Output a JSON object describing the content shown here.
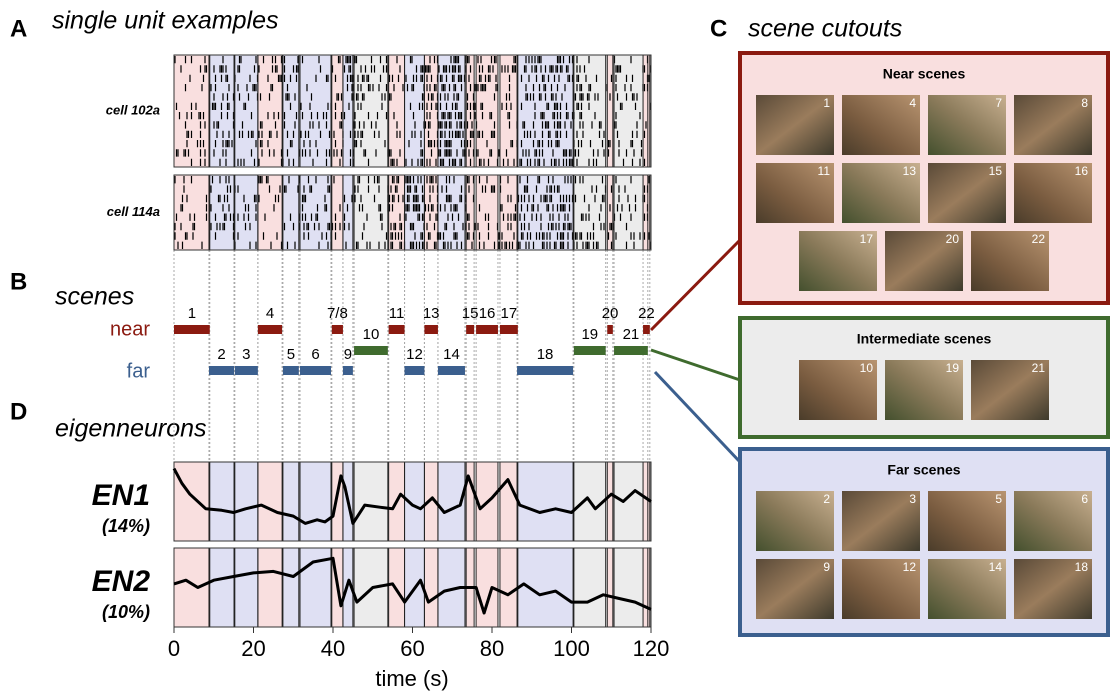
{
  "panel_a": {
    "letter": "A",
    "title": "single unit examples",
    "cells": [
      "cell 102a",
      "cell 114a"
    ]
  },
  "panel_b": {
    "letter": "B",
    "title": "scenes",
    "near_label": "near",
    "far_label": "far",
    "scenes": [
      {
        "label": "1",
        "kind": "near",
        "start": 0,
        "end": 9
      },
      {
        "label": "2",
        "kind": "far",
        "start": 8.8,
        "end": 15.1
      },
      {
        "label": "3",
        "kind": "far",
        "start": 15.3,
        "end": 21.1
      },
      {
        "label": "4",
        "kind": "near",
        "start": 21.1,
        "end": 27.2
      },
      {
        "label": "5",
        "kind": "far",
        "start": 27.4,
        "end": 31.4
      },
      {
        "label": "6",
        "kind": "far",
        "start": 31.7,
        "end": 39.5
      },
      {
        "label": "7/8",
        "kind": "near",
        "start": 39.7,
        "end": 42.5
      },
      {
        "label": "9",
        "kind": "far",
        "start": 42.5,
        "end": 45
      },
      {
        "label": "10",
        "kind": "intermediate",
        "start": 45.3,
        "end": 53.8
      },
      {
        "label": "11",
        "kind": "near",
        "start": 54,
        "end": 58
      },
      {
        "label": "12",
        "kind": "far",
        "start": 58,
        "end": 63
      },
      {
        "label": "13",
        "kind": "near",
        "start": 63,
        "end": 66.4
      },
      {
        "label": "14",
        "kind": "far",
        "start": 66.4,
        "end": 73.2
      },
      {
        "label": "15",
        "kind": "near",
        "start": 73.5,
        "end": 75.5
      },
      {
        "label": "16",
        "kind": "near",
        "start": 76,
        "end": 81.5
      },
      {
        "label": "17",
        "kind": "near",
        "start": 82,
        "end": 86.5
      },
      {
        "label": "18",
        "kind": "far",
        "start": 86.3,
        "end": 100.4
      },
      {
        "label": "19",
        "kind": "intermediate",
        "start": 100.6,
        "end": 108.6
      },
      {
        "label": "20",
        "kind": "near",
        "start": 109,
        "end": 110.4
      },
      {
        "label": "21",
        "kind": "intermediate",
        "start": 110.7,
        "end": 119.2
      },
      {
        "label": "22",
        "kind": "near",
        "start": 118,
        "end": 119.7
      }
    ],
    "colors": {
      "near": {
        "bar": "#8b1a10",
        "shade": "#f9dfdf"
      },
      "far": {
        "bar": "#3b5f8e",
        "shade": "#dfe0f3"
      },
      "intermediate": {
        "bar": "#3f6b2e",
        "shade": "#ececec"
      }
    }
  },
  "panel_c": {
    "letter": "C",
    "title": "scene cutouts",
    "groups": [
      {
        "title": "Near scenes",
        "kind": "near",
        "items": [
          "1",
          "4",
          "7",
          "8",
          "11",
          "13",
          "15",
          "16",
          "17",
          "20",
          "22"
        ]
      },
      {
        "title": "Intermediate scenes",
        "kind": "intermediate",
        "items": [
          "10",
          "19",
          "21"
        ]
      },
      {
        "title": "Far scenes",
        "kind": "far",
        "items": [
          "2",
          "3",
          "5",
          "6",
          "9",
          "12",
          "14",
          "18"
        ]
      }
    ]
  },
  "panel_d": {
    "letter": "D",
    "title": "eigenneurons",
    "xlabel": "time (s)",
    "xlim": [
      0,
      120
    ],
    "xticks": [
      0,
      20,
      40,
      60,
      80,
      100,
      120
    ],
    "ylim": [
      0,
      1
    ],
    "traces": [
      {
        "name": "EN1",
        "variance": "(14%)",
        "x": [
          0,
          2,
          4,
          8,
          12,
          15,
          18,
          22,
          26,
          30,
          33,
          36,
          38,
          40,
          42,
          43,
          45,
          48,
          52,
          55,
          57,
          60,
          62,
          65,
          68,
          72,
          74,
          77,
          80,
          84,
          87,
          92,
          96,
          100,
          104,
          106,
          110,
          113,
          116,
          120
        ],
        "values": [
          0.95,
          0.75,
          0.6,
          0.4,
          0.38,
          0.35,
          0.4,
          0.45,
          0.35,
          0.3,
          0.2,
          0.25,
          0.22,
          0.3,
          0.85,
          0.7,
          0.2,
          0.45,
          0.42,
          0.4,
          0.6,
          0.45,
          0.4,
          0.55,
          0.35,
          0.45,
          0.85,
          0.4,
          0.55,
          0.8,
          0.45,
          0.35,
          0.4,
          0.35,
          0.55,
          0.4,
          0.6,
          0.5,
          0.65,
          0.5
        ]
      },
      {
        "name": "EN2",
        "variance": "(10%)",
        "x": [
          0,
          3,
          6,
          10,
          15,
          20,
          25,
          30,
          35,
          40,
          42,
          44,
          46,
          50,
          55,
          58,
          62,
          64,
          68,
          72,
          76,
          78,
          80,
          84,
          88,
          92,
          96,
          100,
          104,
          108,
          112,
          116,
          120
        ],
        "values": [
          0.55,
          0.6,
          0.5,
          0.6,
          0.65,
          0.7,
          0.72,
          0.65,
          0.85,
          0.9,
          0.25,
          0.6,
          0.3,
          0.5,
          0.55,
          0.3,
          0.6,
          0.3,
          0.45,
          0.5,
          0.5,
          0.15,
          0.5,
          0.4,
          0.55,
          0.4,
          0.45,
          0.3,
          0.3,
          0.4,
          0.35,
          0.3,
          0.2
        ]
      }
    ]
  }
}
